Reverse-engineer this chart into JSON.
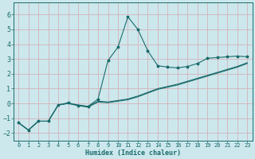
{
  "xlabel": "Humidex (Indice chaleur)",
  "xlim": [
    -0.5,
    23.5
  ],
  "ylim": [
    -2.5,
    6.8
  ],
  "xticks": [
    0,
    1,
    2,
    3,
    4,
    5,
    6,
    7,
    8,
    9,
    10,
    11,
    12,
    13,
    14,
    15,
    16,
    17,
    18,
    19,
    20,
    21,
    22,
    23
  ],
  "yticks": [
    -2,
    -1,
    0,
    1,
    2,
    3,
    4,
    5,
    6
  ],
  "bg_color": "#cce8ed",
  "line_color": "#1a6b6b",
  "grid_color": "#b8d8de",
  "line1_x": [
    0,
    1,
    2,
    3,
    4,
    5,
    6,
    7,
    8,
    9,
    10,
    11,
    12,
    13,
    14,
    15,
    16,
    17,
    18,
    19,
    20,
    21,
    22,
    23
  ],
  "line1_y": [
    -1.3,
    -1.8,
    -1.2,
    -1.2,
    -0.1,
    0.05,
    -0.15,
    -0.2,
    0.3,
    2.9,
    3.8,
    5.85,
    5.0,
    3.55,
    2.55,
    2.45,
    2.4,
    2.5,
    2.7,
    3.05,
    3.1,
    3.15,
    3.2,
    3.15
  ],
  "line2_x": [
    0,
    1,
    2,
    3,
    4,
    5,
    6,
    7,
    8,
    9,
    10,
    11,
    12,
    13,
    14,
    15,
    16,
    17,
    18,
    19,
    20,
    21,
    22,
    23
  ],
  "line2_y": [
    -1.3,
    -1.8,
    -1.2,
    -1.2,
    -0.1,
    0.0,
    -0.1,
    -0.2,
    0.15,
    0.1,
    0.2,
    0.3,
    0.5,
    0.75,
    1.0,
    1.15,
    1.3,
    1.5,
    1.7,
    1.9,
    2.1,
    2.3,
    2.5,
    2.75
  ],
  "line3_x": [
    0,
    1,
    2,
    3,
    4,
    5,
    6,
    7,
    8,
    9,
    10,
    11,
    12,
    13,
    14,
    15,
    16,
    17,
    18,
    19,
    20,
    21,
    22,
    23
  ],
  "line3_y": [
    -1.3,
    -1.8,
    -1.2,
    -1.2,
    -0.1,
    0.0,
    -0.15,
    -0.25,
    0.1,
    0.05,
    0.15,
    0.25,
    0.45,
    0.7,
    0.95,
    1.1,
    1.25,
    1.45,
    1.65,
    1.85,
    2.05,
    2.25,
    2.45,
    2.7
  ]
}
